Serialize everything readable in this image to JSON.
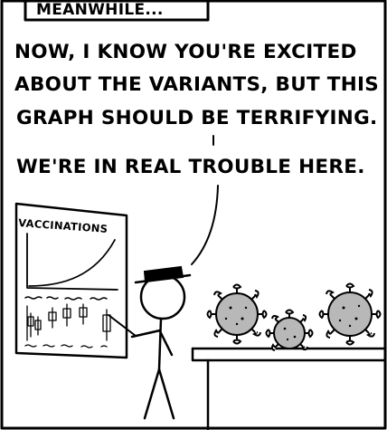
{
  "caption": "MEANWHILE...",
  "speech": {
    "lines": [
      "NOW, I KNOW YOU'RE EXCITED",
      "ABOUT THE VARIANTS, BUT THIS",
      "GRAPH SHOULD BE TERRIFYING.",
      "WE'RE IN REAL TROUBLE HERE."
    ]
  },
  "board": {
    "title": "VACCINATIONS"
  }
}
